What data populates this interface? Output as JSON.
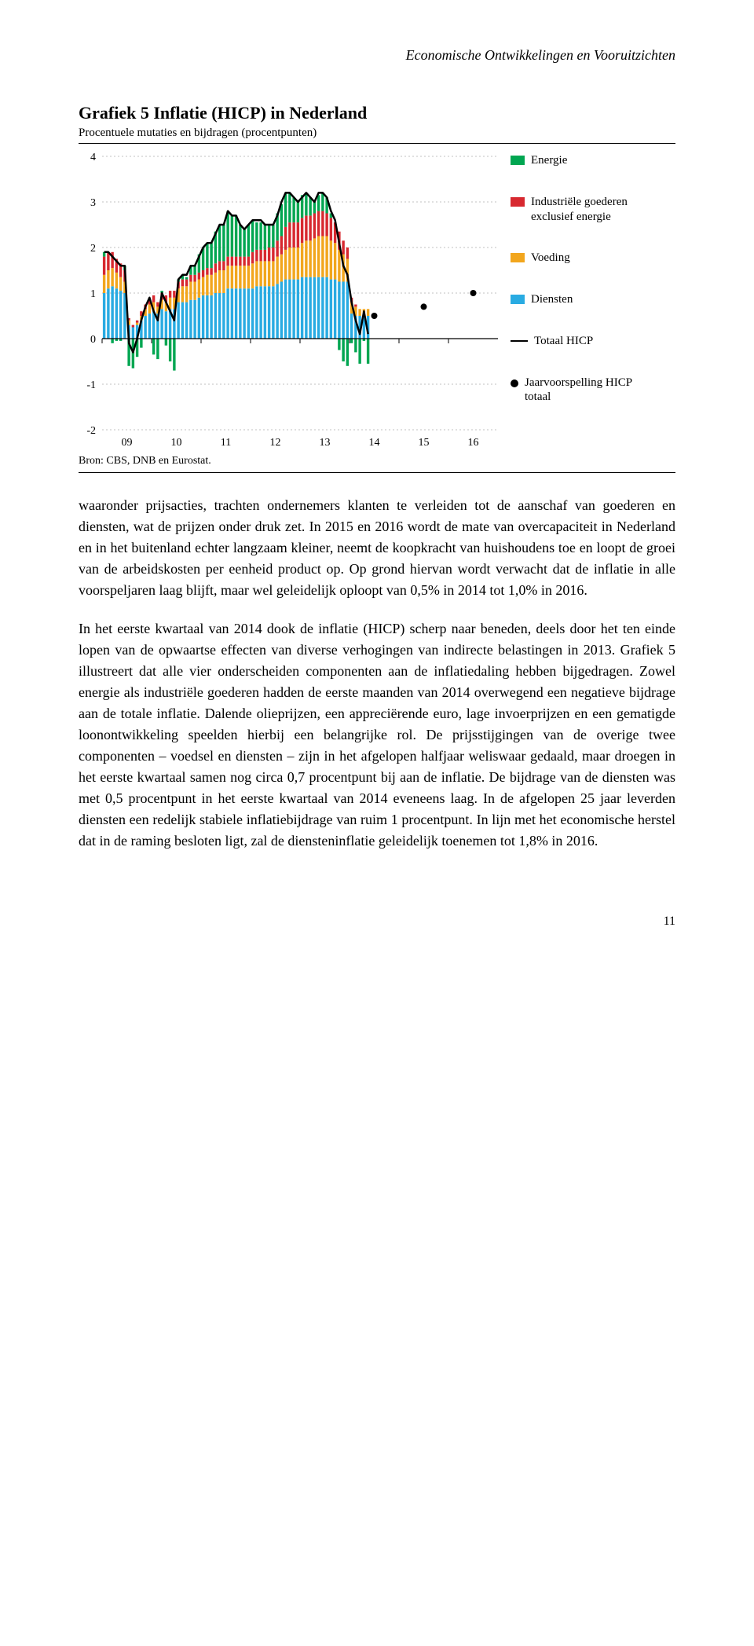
{
  "header": "Economische Ontwikkelingen en Vooruitzichten",
  "chart": {
    "type": "stacked-bar+line+scatter",
    "title": "Grafiek 5 Inflatie (HICP) in Nederland",
    "subtitle": "Procentuele mutaties en bijdragen (procentpunten)",
    "source": "Bron: CBS, DNB en Eurostat.",
    "ylim": [
      -2,
      4
    ],
    "ytick_step": 1,
    "yticks": [
      "-2",
      "-1",
      "0",
      "1",
      "2",
      "3",
      "4"
    ],
    "xticks": [
      "09",
      "10",
      "11",
      "12",
      "13",
      "14",
      "15",
      "16"
    ],
    "grid_color": "#c0c0c0",
    "zero_line_color": "#000000",
    "background_color": "#ffffff",
    "bar_gap_ratio": 0.35,
    "line_width": 2.5,
    "line_color": "#000000",
    "forecast_marker_color": "#000000",
    "forecast_marker_radius": 4,
    "axis_fontsize": 14,
    "legend_fontsize": 15,
    "legend": [
      {
        "key": "energie",
        "type": "swatch",
        "color": "#00a651",
        "label": "Energie"
      },
      {
        "key": "ind",
        "type": "swatch",
        "color": "#d7282f",
        "label": "Industriële goederen exclusief energie"
      },
      {
        "key": "voeding",
        "type": "swatch",
        "color": "#f2a61d",
        "label": "Voeding"
      },
      {
        "key": "diensten",
        "type": "swatch",
        "color": "#29abe2",
        "label": "Diensten"
      },
      {
        "key": "totaal",
        "type": "line",
        "color": "#000000",
        "label": "Totaal HICP"
      },
      {
        "key": "forecast",
        "type": "dot",
        "color": "#000000",
        "label": "Jaarvoorspelling HICP totaal"
      }
    ],
    "series_order": [
      "diensten",
      "voeding",
      "ind",
      "energie"
    ],
    "colors": {
      "diensten": "#29abe2",
      "voeding": "#f2a61d",
      "ind": "#d7282f",
      "energie": "#00a651"
    },
    "forecast_points": [
      {
        "x": 65.5,
        "y": 0.5
      },
      {
        "x": 77.5,
        "y": 0.7
      },
      {
        "x": 89.5,
        "y": 1.0
      }
    ],
    "months": [
      {
        "d": 1.0,
        "v": 0.4,
        "i": 0.4,
        "e": 0.1,
        "t": 1.9
      },
      {
        "d": 1.1,
        "v": 0.4,
        "i": 0.4,
        "e": 0.0,
        "t": 1.9
      },
      {
        "d": 1.15,
        "v": 0.4,
        "i": 0.35,
        "e": -0.1,
        "t": 1.8
      },
      {
        "d": 1.1,
        "v": 0.35,
        "i": 0.3,
        "e": -0.05,
        "t": 1.7
      },
      {
        "d": 1.05,
        "v": 0.3,
        "i": 0.3,
        "e": -0.05,
        "t": 1.6
      },
      {
        "d": 1.0,
        "v": 0.25,
        "i": 0.25,
        "e": 0.1,
        "t": 1.6
      },
      {
        "d": 0.3,
        "v": 0.1,
        "i": 0.05,
        "e": -0.6,
        "t": -0.1
      },
      {
        "d": 0.25,
        "v": 0.0,
        "i": 0.05,
        "e": -0.65,
        "t": -0.3
      },
      {
        "d": 0.3,
        "v": 0.05,
        "i": 0.05,
        "e": -0.4,
        "t": 0.0
      },
      {
        "d": 0.4,
        "v": 0.1,
        "i": 0.1,
        "e": -0.2,
        "t": 0.4
      },
      {
        "d": 0.5,
        "v": 0.15,
        "i": 0.1,
        "e": 0.0,
        "t": 0.7
      },
      {
        "d": 0.55,
        "v": 0.2,
        "i": 0.1,
        "e": 0.0,
        "t": 0.9
      },
      {
        "d": 0.6,
        "v": 0.2,
        "i": 0.15,
        "e": -0.35,
        "t": 0.6
      },
      {
        "d": 0.55,
        "v": 0.15,
        "i": 0.1,
        "e": -0.45,
        "t": 0.4
      },
      {
        "d": 0.65,
        "v": 0.2,
        "i": 0.15,
        "e": 0.05,
        "t": 1.0
      },
      {
        "d": 0.6,
        "v": 0.2,
        "i": 0.15,
        "e": -0.15,
        "t": 0.8
      },
      {
        "d": 0.65,
        "v": 0.25,
        "i": 0.15,
        "e": -0.5,
        "t": 0.6
      },
      {
        "d": 0.65,
        "v": 0.25,
        "i": 0.15,
        "e": -0.7,
        "t": 0.4
      },
      {
        "d": 0.8,
        "v": 0.3,
        "i": 0.15,
        "e": 0.05,
        "t": 1.3
      },
      {
        "d": 0.8,
        "v": 0.35,
        "i": 0.15,
        "e": 0.1,
        "t": 1.4
      },
      {
        "d": 0.8,
        "v": 0.35,
        "i": 0.15,
        "e": 0.05,
        "t": 1.4
      },
      {
        "d": 0.85,
        "v": 0.4,
        "i": 0.15,
        "e": 0.2,
        "t": 1.6
      },
      {
        "d": 0.85,
        "v": 0.4,
        "i": 0.15,
        "e": 0.2,
        "t": 1.6
      },
      {
        "d": 0.9,
        "v": 0.4,
        "i": 0.15,
        "e": 0.4,
        "t": 1.8
      },
      {
        "d": 0.95,
        "v": 0.4,
        "i": 0.15,
        "e": 0.5,
        "t": 2.0
      },
      {
        "d": 0.95,
        "v": 0.45,
        "i": 0.15,
        "e": 0.55,
        "t": 2.1
      },
      {
        "d": 0.95,
        "v": 0.45,
        "i": 0.15,
        "e": 0.55,
        "t": 2.1
      },
      {
        "d": 1.0,
        "v": 0.45,
        "i": 0.2,
        "e": 0.7,
        "t": 2.3
      },
      {
        "d": 1.0,
        "v": 0.5,
        "i": 0.2,
        "e": 0.8,
        "t": 2.5
      },
      {
        "d": 1.0,
        "v": 0.5,
        "i": 0.2,
        "e": 0.8,
        "t": 2.5
      },
      {
        "d": 1.1,
        "v": 0.5,
        "i": 0.2,
        "e": 1.0,
        "t": 2.8
      },
      {
        "d": 1.1,
        "v": 0.5,
        "i": 0.2,
        "e": 0.9,
        "t": 2.7
      },
      {
        "d": 1.1,
        "v": 0.5,
        "i": 0.2,
        "e": 0.9,
        "t": 2.7
      },
      {
        "d": 1.1,
        "v": 0.5,
        "i": 0.2,
        "e": 0.7,
        "t": 2.5
      },
      {
        "d": 1.1,
        "v": 0.5,
        "i": 0.2,
        "e": 0.6,
        "t": 2.4
      },
      {
        "d": 1.1,
        "v": 0.5,
        "i": 0.2,
        "e": 0.7,
        "t": 2.5
      },
      {
        "d": 1.1,
        "v": 0.55,
        "i": 0.25,
        "e": 0.7,
        "t": 2.6
      },
      {
        "d": 1.15,
        "v": 0.55,
        "i": 0.25,
        "e": 0.6,
        "t": 2.6
      },
      {
        "d": 1.15,
        "v": 0.55,
        "i": 0.25,
        "e": 0.6,
        "t": 2.6
      },
      {
        "d": 1.15,
        "v": 0.55,
        "i": 0.25,
        "e": 0.55,
        "t": 2.5
      },
      {
        "d": 1.15,
        "v": 0.55,
        "i": 0.3,
        "e": 0.5,
        "t": 2.5
      },
      {
        "d": 1.15,
        "v": 0.55,
        "i": 0.3,
        "e": 0.5,
        "t": 2.5
      },
      {
        "d": 1.2,
        "v": 0.6,
        "i": 0.35,
        "e": 0.6,
        "t": 2.7
      },
      {
        "d": 1.25,
        "v": 0.6,
        "i": 0.4,
        "e": 0.7,
        "t": 3.0
      },
      {
        "d": 1.3,
        "v": 0.65,
        "i": 0.5,
        "e": 0.75,
        "t": 3.2
      },
      {
        "d": 1.3,
        "v": 0.7,
        "i": 0.55,
        "e": 0.65,
        "t": 3.2
      },
      {
        "d": 1.3,
        "v": 0.7,
        "i": 0.55,
        "e": 0.55,
        "t": 3.1
      },
      {
        "d": 1.3,
        "v": 0.7,
        "i": 0.55,
        "e": 0.45,
        "t": 3.0
      },
      {
        "d": 1.35,
        "v": 0.75,
        "i": 0.55,
        "e": 0.5,
        "t": 3.1
      },
      {
        "d": 1.35,
        "v": 0.8,
        "i": 0.55,
        "e": 0.5,
        "t": 3.2
      },
      {
        "d": 1.35,
        "v": 0.8,
        "i": 0.55,
        "e": 0.4,
        "t": 3.1
      },
      {
        "d": 1.35,
        "v": 0.85,
        "i": 0.55,
        "e": 0.25,
        "t": 3.0
      },
      {
        "d": 1.35,
        "v": 0.9,
        "i": 0.55,
        "e": 0.35,
        "t": 3.2
      },
      {
        "d": 1.35,
        "v": 0.9,
        "i": 0.55,
        "e": 0.4,
        "t": 3.2
      },
      {
        "d": 1.35,
        "v": 0.9,
        "i": 0.5,
        "e": 0.35,
        "t": 3.1
      },
      {
        "d": 1.3,
        "v": 0.85,
        "i": 0.5,
        "e": 0.1,
        "t": 2.8
      },
      {
        "d": 1.3,
        "v": 0.8,
        "i": 0.45,
        "e": 0.0,
        "t": 2.6
      },
      {
        "d": 1.25,
        "v": 0.7,
        "i": 0.4,
        "e": -0.25,
        "t": 2.1
      },
      {
        "d": 1.25,
        "v": 0.6,
        "i": 0.3,
        "e": -0.5,
        "t": 1.6
      },
      {
        "d": 1.25,
        "v": 0.5,
        "i": 0.25,
        "e": -0.6,
        "t": 1.4
      },
      {
        "d": 0.55,
        "v": 0.25,
        "i": 0.1,
        "e": -0.1,
        "t": 0.8
      },
      {
        "d": 0.5,
        "v": 0.2,
        "i": 0.05,
        "e": -0.3,
        "t": 0.4
      },
      {
        "d": 0.5,
        "v": 0.15,
        "i": 0.0,
        "e": -0.55,
        "t": 0.1
      },
      {
        "d": 0.5,
        "v": 0.15,
        "i": 0.0,
        "e": -0.05,
        "t": 0.6
      },
      {
        "d": 0.5,
        "v": 0.15,
        "i": 0.0,
        "e": -0.55,
        "t": 0.1
      }
    ]
  },
  "para1": "waaronder prijsacties, trachten ondernemers klanten te verleiden tot de aanschaf van goederen en diensten, wat de prijzen onder druk zet. In 2015 en 2016 wordt de mate van overcapaciteit in Nederland en in het buitenland echter langzaam kleiner, neemt de koopkracht van huishoudens toe en loopt de groei van de arbeidskosten per eenheid product op. Op grond hiervan wordt verwacht dat de inflatie in alle voorspeljaren laag blijft, maar wel geleidelijk oploopt van 0,5% in 2014 tot 1,0% in 2016.",
  "para2": "In het eerste kwartaal van 2014 dook de inflatie (HICP) scherp naar beneden, deels door het ten einde lopen van de opwaartse effecten van diverse verhogingen van indirecte belastingen in 2013. Grafiek 5 illustreert dat alle vier onderscheiden componenten aan de inflatiedaling hebben bijgedragen. Zowel energie als industriële goederen hadden de eerste maanden van 2014 overwegend een negatieve bijdrage aan de totale inflatie. Dalende olieprijzen, een appreciërende euro, lage invoerprijzen en een gematigde loonontwikkeling speelden hierbij een belangrijke rol. De prijsstijgingen van de overige twee componenten – voedsel en diensten – zijn in het afgelopen halfjaar weliswaar gedaald, maar droegen in het eerste kwartaal samen nog circa 0,7 procentpunt bij aan de inflatie. De bijdrage van de diensten was met 0,5 procentpunt in het eerste kwartaal van 2014 eveneens laag. In de afgelopen 25 jaar leverden diensten een redelijk stabiele inflatiebijdrage van ruim 1 procentpunt. In lijn met het economische herstel dat in de raming besloten ligt, zal de diensteninflatie geleidelijk toenemen tot 1,8% in 2016.",
  "pagenum": "11"
}
